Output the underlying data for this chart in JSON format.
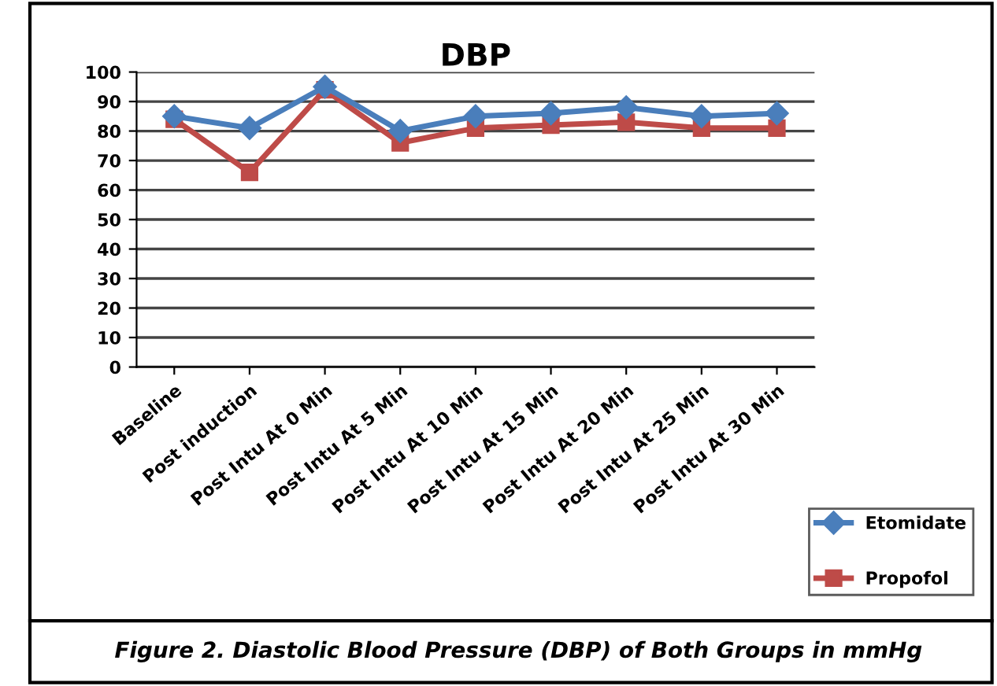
{
  "chart_data": {
    "type": "line",
    "title": "DBP",
    "categories": [
      "Baseline",
      "Post induction",
      "Post Intu At 0 Min",
      "Post Intu At 5 Min",
      "Post Intu At 10 Min",
      "Post Intu At 15 Min",
      "Post Intu At 20 Min",
      "Post Intu At 25 Min",
      "Post Intu At 30 Min"
    ],
    "series": [
      {
        "name": "Etomidate",
        "color": "#4a7ebb",
        "marker": "diamond",
        "values": [
          85,
          81,
          95,
          80,
          85,
          86,
          88,
          85,
          86
        ]
      },
      {
        "name": "Propofol",
        "color": "#be4b48",
        "marker": "square",
        "values": [
          84,
          66,
          94,
          76,
          81,
          82,
          83,
          81,
          81
        ]
      }
    ],
    "ylim": [
      0,
      100
    ],
    "yticks": [
      0,
      10,
      20,
      30,
      40,
      50,
      60,
      70,
      80,
      90,
      100
    ],
    "grid": "y",
    "legend": "bottom right",
    "annotations": [
      "Figure 2. Diastolic Blood Pressure (DBP) of Both Groups in mmHg"
    ]
  }
}
